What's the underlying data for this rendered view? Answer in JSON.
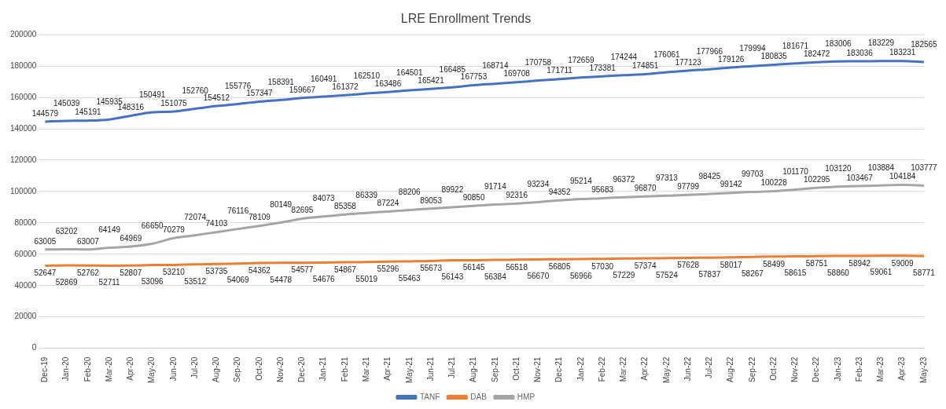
{
  "chart_data": {
    "type": "line",
    "title": "LRE Enrollment Trends",
    "categories": [
      "Dec-19",
      "Jan-20",
      "Feb-20",
      "Mar-20",
      "Apr-20",
      "May-20",
      "Jun-20",
      "Jul-20",
      "Aug-20",
      "Sep-20",
      "Oct-20",
      "Nov-20",
      "Dec-20",
      "Jan-21",
      "Feb-21",
      "Mar-21",
      "Apr-21",
      "May-21",
      "Jun-21",
      "Jul-21",
      "Aug-21",
      "Sep-21",
      "Oct-21",
      "Nov-21",
      "Dec-21",
      "Jan-22",
      "Feb-22",
      "Mar-22",
      "Apr-22",
      "May-22",
      "Jun-22",
      "Jul-22",
      "Aug-22",
      "Sep-22",
      "Oct-22",
      "Nov-22",
      "Dec-22",
      "Jan-23",
      "Feb-23",
      "Mar-23",
      "Apr-23",
      "May-23"
    ],
    "series": [
      {
        "name": "TANF",
        "color": "#4472c4",
        "values": [
          144579,
          145039,
          145191,
          145935,
          148316,
          150491,
          151075,
          152760,
          154512,
          155776,
          157347,
          158391,
          159667,
          160491,
          161372,
          162510,
          163486,
          164501,
          165421,
          166485,
          167753,
          168714,
          169708,
          170758,
          171711,
          172659,
          173381,
          174244,
          174851,
          176061,
          177123,
          177966,
          179126,
          179994,
          180835,
          181671,
          182472,
          183006,
          183036,
          183229,
          183231,
          182565
        ]
      },
      {
        "name": "DAB",
        "color": "#ed7d31",
        "values": [
          52647,
          52869,
          52762,
          52711,
          52807,
          53096,
          53210,
          53512,
          53735,
          54069,
          54362,
          54478,
          54577,
          54676,
          54867,
          55019,
          55296,
          55463,
          55673,
          56143,
          56145,
          56384,
          56518,
          56670,
          56805,
          56966,
          57030,
          57229,
          57374,
          57524,
          57628,
          57837,
          58017,
          58267,
          58499,
          58615,
          58751,
          58860,
          58942,
          59061,
          59009,
          58771
        ]
      },
      {
        "name": "HMP",
        "color": "#a5a5a5",
        "values": [
          63005,
          63202,
          63007,
          64149,
          64969,
          66650,
          70279,
          72074,
          74103,
          76116,
          78109,
          80149,
          82695,
          84073,
          85358,
          86339,
          87224,
          88206,
          89053,
          89922,
          90850,
          91714,
          92316,
          93234,
          94352,
          95214,
          95683,
          96372,
          96870,
          97313,
          97799,
          98425,
          99142,
          99703,
          100228,
          101170,
          102295,
          103120,
          103467,
          103884,
          104184,
          103777
        ]
      }
    ],
    "ylim": [
      0,
      200000
    ],
    "yticks": [
      0,
      20000,
      40000,
      60000,
      80000,
      100000,
      120000,
      140000,
      160000,
      180000,
      200000
    ],
    "grid": "y",
    "legend": "bottom",
    "data_labels": true,
    "marker": "none",
    "line_style": "solid"
  }
}
